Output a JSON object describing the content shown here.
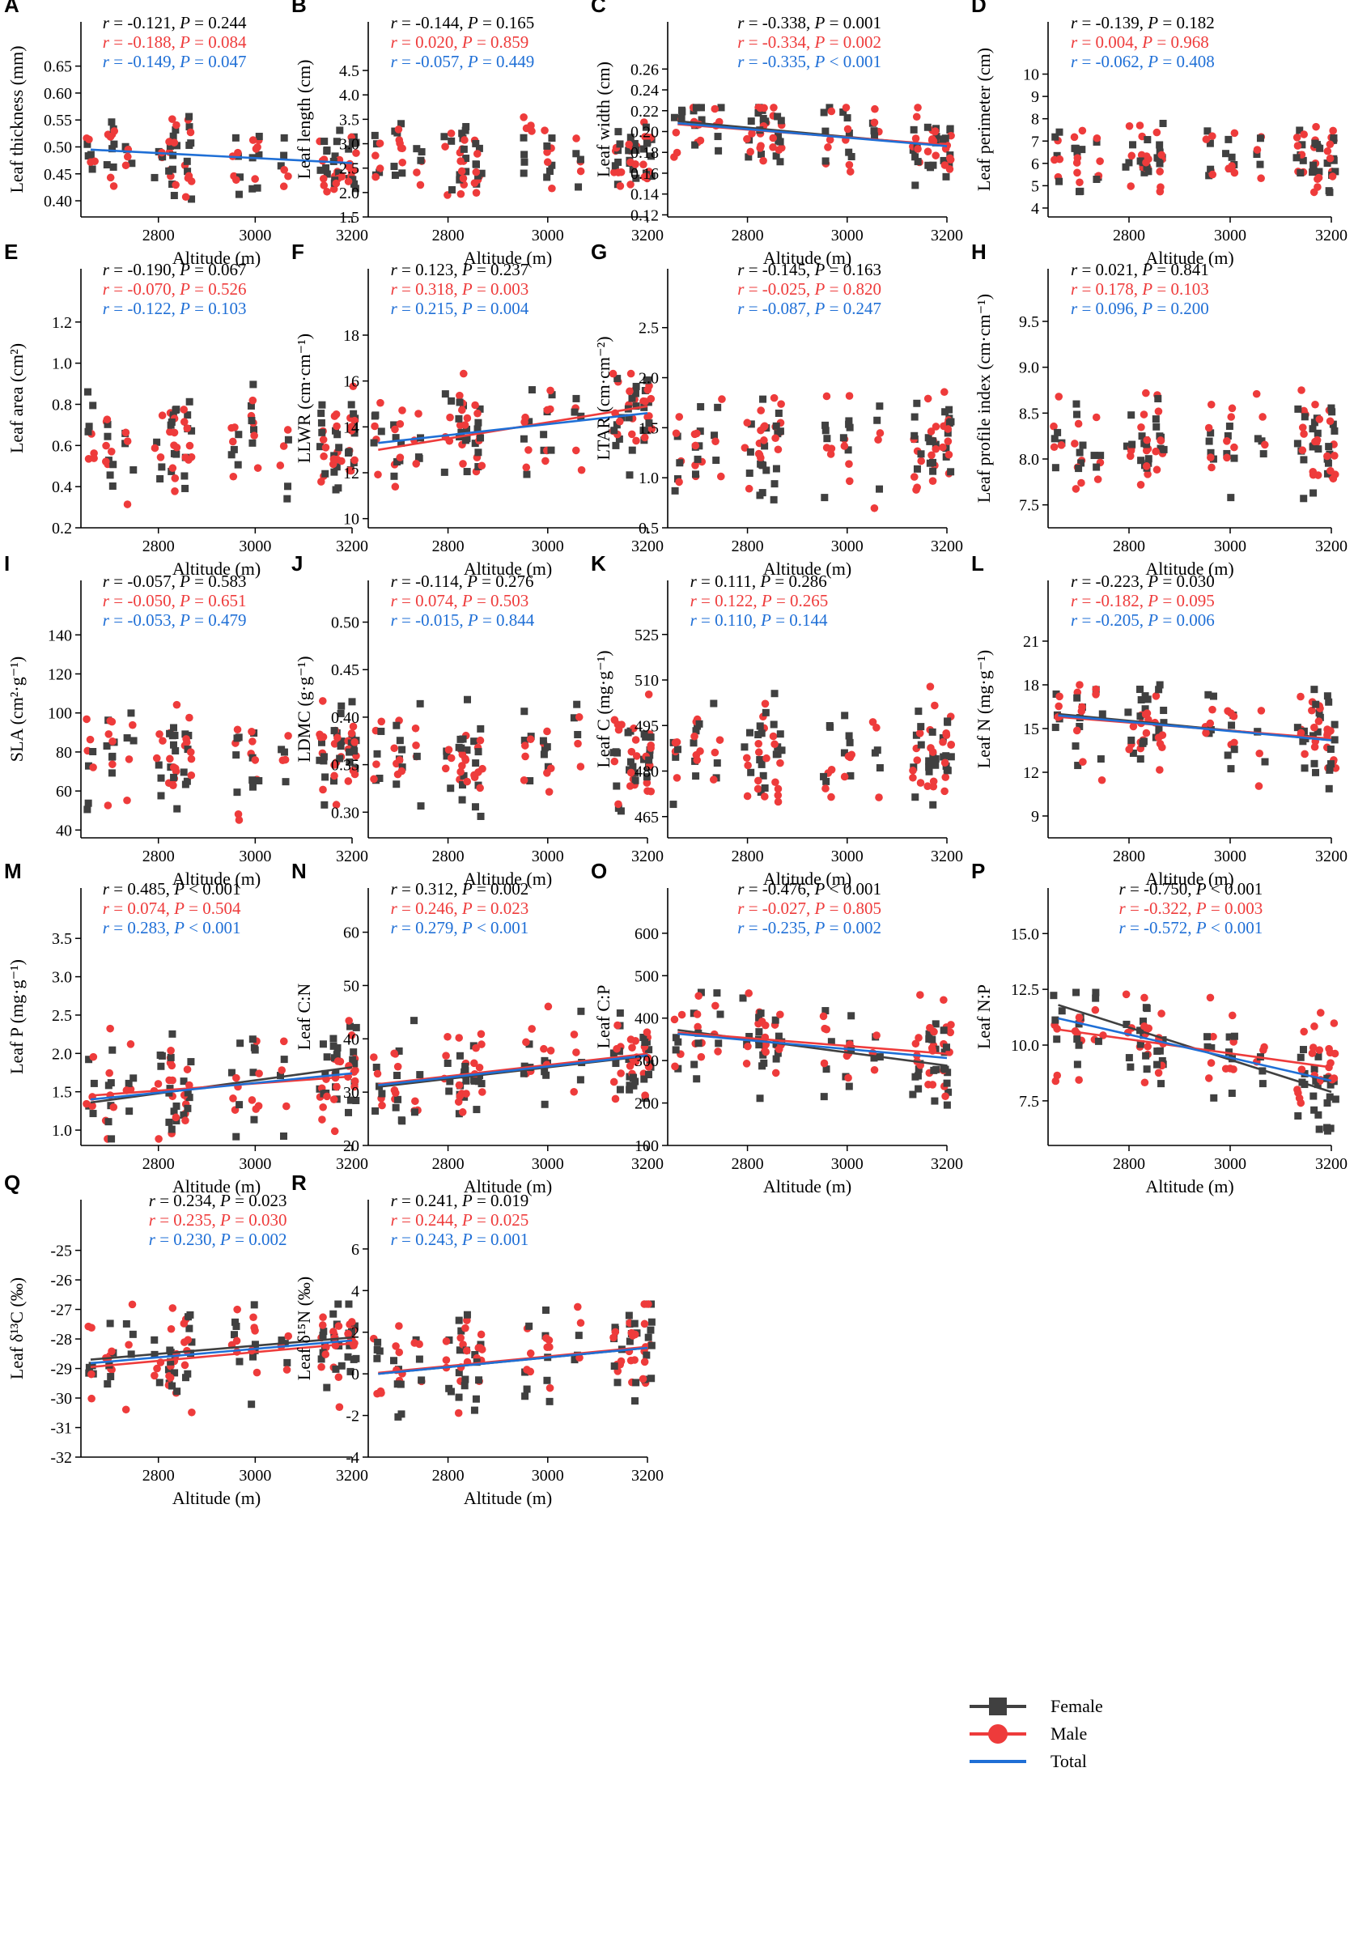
{
  "colors": {
    "female": "#404040",
    "male": "#ee3b3b",
    "total": "#1f6fd6"
  },
  "legend": [
    {
      "key": "female",
      "label": "Female"
    },
    {
      "key": "male",
      "label": "Male"
    },
    {
      "key": "total",
      "label": "Total"
    }
  ],
  "chart_data": [
    {
      "panel": "A",
      "type": "scatter",
      "xlabel": "Altitude (m)",
      "ylabel": "Leaf thickness (mm)",
      "xlim": [
        2640,
        3200
      ],
      "xticks": [
        "2800",
        "3000",
        "3200"
      ],
      "ylim": [
        0.37,
        0.66
      ],
      "yticks": [
        "0.40",
        "0.45",
        "0.50",
        "0.55",
        "0.60",
        "0.65"
      ],
      "stats": {
        "female": [
          "-0.121",
          "0.244",
          "="
        ],
        "male": [
          "-0.188",
          "0.084",
          "="
        ],
        "total": [
          "-0.149",
          "0.047",
          "="
        ]
      },
      "lines": {
        "total": [
          0.495,
          0.47
        ]
      },
      "stat_pos": "top-left"
    },
    {
      "panel": "B",
      "type": "scatter",
      "xlabel": "Altitude (m)",
      "ylabel": "Leaf length (cm)",
      "xlim": [
        2640,
        3200
      ],
      "xticks": [
        "2800",
        "3000",
        "3200"
      ],
      "ylim": [
        1.5,
        4.7
      ],
      "yticks": [
        "1.5",
        "2.0",
        "2.5",
        "3.0",
        "3.5",
        "4.0",
        "4.5"
      ],
      "stats": {
        "female": [
          "-0.144",
          "0.165",
          "="
        ],
        "male": [
          "0.020",
          "0.859",
          "="
        ],
        "total": [
          "-0.057",
          "0.449",
          "="
        ]
      },
      "lines": {},
      "stat_pos": "top-left"
    },
    {
      "panel": "C",
      "type": "scatter",
      "xlabel": "Altitude (m)",
      "ylabel": "Leaf width (cm)",
      "xlim": [
        2640,
        3200
      ],
      "xticks": [
        "2800",
        "3000",
        "3200"
      ],
      "ylim": [
        0.118,
        0.268
      ],
      "yticks": [
        "0.12",
        "0.14",
        "0.16",
        "0.18",
        "0.20",
        "0.22",
        "0.24",
        "0.26"
      ],
      "stats": {
        "female": [
          "-0.338",
          "0.001",
          "="
        ],
        "male": [
          "-0.334",
          "0.002",
          "="
        ],
        "total": [
          "-0.335",
          "0.001",
          "<"
        ]
      },
      "lines": {
        "female": [
          0.21,
          0.186
        ],
        "male": [
          0.207,
          0.187
        ],
        "total": [
          0.208,
          0.186
        ]
      },
      "stat_pos": "top-right"
    },
    {
      "panel": "D",
      "type": "scatter",
      "xlabel": "Altitude (m)",
      "ylabel": "Leaf perimeter (cm)",
      "xlim": [
        2640,
        3200
      ],
      "xticks": [
        "2800",
        "3000",
        "3200"
      ],
      "ylim": [
        3.6,
        10.6
      ],
      "yticks": [
        "4",
        "5",
        "6",
        "7",
        "8",
        "9",
        "10"
      ],
      "stats": {
        "female": [
          "-0.139",
          "0.182",
          "="
        ],
        "male": [
          "0.004",
          "0.968",
          "="
        ],
        "total": [
          "-0.062",
          "0.408",
          "="
        ]
      },
      "lines": {},
      "stat_pos": "top-left"
    },
    {
      "panel": "E",
      "type": "scatter",
      "xlabel": "Altitude (m)",
      "ylabel": "Leaf area (cm²)",
      "xlim": [
        2640,
        3200
      ],
      "xticks": [
        "2800",
        "3000",
        "3200"
      ],
      "ylim": [
        0.2,
        1.27
      ],
      "yticks": [
        "0.2",
        "0.4",
        "0.6",
        "0.8",
        "1.0",
        "1.2"
      ],
      "stats": {
        "female": [
          "-0.190",
          "0.067",
          "="
        ],
        "male": [
          "-0.070",
          "0.526",
          "="
        ],
        "total": [
          "-0.122",
          "0.103",
          "="
        ]
      },
      "lines": {},
      "stat_pos": "top-left"
    },
    {
      "panel": "F",
      "type": "scatter",
      "xlabel": "Altitude (m)",
      "ylabel": "LLWR (cm·cm⁻¹)",
      "xlim": [
        2640,
        3200
      ],
      "xticks": [
        "2800",
        "3000",
        "3200"
      ],
      "ylim": [
        9.6,
        19.2
      ],
      "yticks": [
        "10",
        "12",
        "14",
        "16",
        "18"
      ],
      "stats": {
        "female": [
          "0.123",
          "0.237",
          "="
        ],
        "male": [
          "0.318",
          "0.003",
          "="
        ],
        "total": [
          "0.215",
          "0.004",
          "="
        ]
      },
      "lines": {
        "male": [
          13.0,
          14.9
        ],
        "total": [
          13.3,
          14.6
        ]
      },
      "stat_pos": "top-left"
    },
    {
      "panel": "G",
      "type": "scatter",
      "xlabel": "Altitude (m)",
      "ylabel": "LTAR (cm·cm⁻²)",
      "xlim": [
        2640,
        3200
      ],
      "xticks": [
        "2800",
        "3000",
        "3200"
      ],
      "ylim": [
        0.5,
        2.7
      ],
      "yticks": [
        "0.5",
        "1.0",
        "1.5",
        "2.0",
        "2.5"
      ],
      "stats": {
        "female": [
          "-0.145",
          "0.163",
          "="
        ],
        "male": [
          "-0.025",
          "0.820",
          "="
        ],
        "total": [
          "-0.087",
          "0.247",
          "="
        ]
      },
      "lines": {},
      "stat_pos": "top-right"
    },
    {
      "panel": "H",
      "type": "scatter",
      "xlabel": "Altitude (m)",
      "ylabel": "Leaf profile index (cm·cm⁻¹)",
      "xlim": [
        2640,
        3200
      ],
      "xticks": [
        "2800",
        "3000",
        "3200"
      ],
      "ylim": [
        7.25,
        9.65
      ],
      "yticks": [
        "7.5",
        "8.0",
        "8.5",
        "9.0",
        "9.5"
      ],
      "stats": {
        "female": [
          "0.021",
          "0.841",
          "="
        ],
        "male": [
          "0.178",
          "0.103",
          "="
        ],
        "total": [
          "0.096",
          "0.200",
          "="
        ]
      },
      "lines": {},
      "stat_pos": "top-left"
    },
    {
      "panel": "I",
      "type": "scatter",
      "xlabel": "Altitude (m)",
      "ylabel": "SLA (cm²·g⁻¹)",
      "xlim": [
        2640,
        3200
      ],
      "xticks": [
        "2800",
        "3000",
        "3200"
      ],
      "ylim": [
        36,
        148
      ],
      "yticks": [
        "40",
        "60",
        "80",
        "100",
        "120",
        "140"
      ],
      "stats": {
        "female": [
          "-0.057",
          "0.583",
          "="
        ],
        "male": [
          "-0.050",
          "0.651",
          "="
        ],
        "total": [
          "-0.053",
          "0.479",
          "="
        ]
      },
      "lines": {},
      "stat_pos": "top-left"
    },
    {
      "panel": "J",
      "type": "scatter",
      "xlabel": "Altitude (m)",
      "ylabel": "LDMC (g·g⁻¹)",
      "xlim": [
        2640,
        3200
      ],
      "xticks": [
        "2800",
        "3000",
        "3200"
      ],
      "ylim": [
        0.273,
        0.503
      ],
      "yticks": [
        "0.30",
        "0.35",
        "0.40",
        "0.45",
        "0.50"
      ],
      "stats": {
        "female": [
          "-0.114",
          "0.276",
          "="
        ],
        "male": [
          "0.074",
          "0.503",
          "="
        ],
        "total": [
          "-0.015",
          "0.844",
          "="
        ]
      },
      "lines": {},
      "stat_pos": "top-left"
    },
    {
      "panel": "K",
      "type": "scatter",
      "xlabel": "Altitude (m)",
      "ylabel": "Leaf C (mg·g⁻¹)",
      "xlim": [
        2640,
        3200
      ],
      "xticks": [
        "2800",
        "3000",
        "3200"
      ],
      "ylim": [
        458,
        530
      ],
      "yticks": [
        "465",
        "480",
        "495",
        "510",
        "525"
      ],
      "stats": {
        "female": [
          "0.111",
          "0.286",
          "="
        ],
        "male": [
          "0.122",
          "0.265",
          "="
        ],
        "total": [
          "0.110",
          "0.144",
          "="
        ]
      },
      "lines": {},
      "stat_pos": "top-left"
    },
    {
      "panel": "L",
      "type": "scatter",
      "xlabel": "Altitude (m)",
      "ylabel": "Leaf N (mg·g⁻¹)",
      "xlim": [
        2640,
        3200
      ],
      "xticks": [
        "2800",
        "3000",
        "3200"
      ],
      "ylim": [
        7.5,
        22.5
      ],
      "yticks": [
        "9",
        "12",
        "15",
        "18",
        "21"
      ],
      "stats": {
        "female": [
          "-0.223",
          "0.030",
          "="
        ],
        "male": [
          "-0.182",
          "0.095",
          "="
        ],
        "total": [
          "-0.205",
          "0.006",
          "="
        ]
      },
      "lines": {
        "female": [
          16.0,
          14.2
        ],
        "male": [
          15.8,
          14.3
        ],
        "total": [
          15.9,
          14.2
        ]
      },
      "stat_pos": "top-left"
    },
    {
      "panel": "M",
      "type": "scatter",
      "xlabel": "Altitude (m)",
      "ylabel": "Leaf P (mg·g⁻¹)",
      "xlim": [
        2640,
        3200
      ],
      "xticks": [
        "2800",
        "3000",
        "3200"
      ],
      "ylim": [
        0.8,
        3.65
      ],
      "yticks": [
        "1.0",
        "1.5",
        "2.0",
        "2.5",
        "3.0",
        "3.5"
      ],
      "stats": {
        "female": [
          "0.485",
          "0.001",
          "<"
        ],
        "male": [
          "0.074",
          "0.504",
          "="
        ],
        "total": [
          "0.283",
          "0.001",
          "<"
        ]
      },
      "lines": {
        "female": [
          1.36,
          1.82
        ],
        "male": [
          1.45,
          1.7
        ],
        "total": [
          1.4,
          1.74
        ]
      },
      "stat_pos": "top-left"
    },
    {
      "panel": "N",
      "type": "scatter",
      "xlabel": "Altitude (m)",
      "ylabel": "Leaf C:N",
      "xlim": [
        2640,
        3200
      ],
      "xticks": [
        "2800",
        "3000",
        "3200"
      ],
      "ylim": [
        20,
        61
      ],
      "yticks": [
        "20",
        "30",
        "40",
        "50",
        "60"
      ],
      "stats": {
        "female": [
          "0.312",
          "0.002",
          "="
        ],
        "male": [
          "0.246",
          "0.023",
          "="
        ],
        "total": [
          "0.279",
          "0.001",
          "<"
        ]
      },
      "lines": {
        "female": [
          31.0,
          36.8
        ],
        "male": [
          31.5,
          37.2
        ],
        "total": [
          31.3,
          36.9
        ]
      },
      "stat_pos": "top-left"
    },
    {
      "panel": "O",
      "type": "scatter",
      "xlabel": "Altitude (m)",
      "ylabel": "Leaf C:P",
      "xlim": [
        2640,
        3200
      ],
      "xticks": [
        "2800",
        "3000",
        "3200"
      ],
      "ylim": [
        100,
        615
      ],
      "yticks": [
        "100",
        "200",
        "300",
        "400",
        "500",
        "600"
      ],
      "stats": {
        "female": [
          "-0.476",
          "0.001",
          "<"
        ],
        "male": [
          "-0.027",
          "0.805",
          "="
        ],
        "total": [
          "-0.235",
          "0.002",
          "="
        ]
      },
      "lines": {
        "female": [
          372,
          288
        ],
        "male": [
          366,
          316
        ],
        "total": [
          363,
          306
        ]
      },
      "stat_pos": "top-right"
    },
    {
      "panel": "P",
      "type": "scatter",
      "xlabel": "Altitude (m)",
      "ylabel": "Leaf N:P",
      "xlim": [
        2640,
        3200
      ],
      "xticks": [
        "2800",
        "3000",
        "3200"
      ],
      "ylim": [
        5.5,
        15.3
      ],
      "yticks": [
        "7.5",
        "10.0",
        "12.5",
        "15.0"
      ],
      "stats": {
        "female": [
          "-0.750",
          "0.001",
          "<"
        ],
        "male": [
          "-0.322",
          "0.003",
          "="
        ],
        "total": [
          "-0.572",
          "0.001",
          "<"
        ]
      },
      "lines": {
        "female": [
          11.8,
          7.9
        ],
        "male": [
          10.7,
          9.0
        ],
        "total": [
          11.2,
          8.4
        ]
      },
      "stat_pos": "top-right"
    },
    {
      "panel": "Q",
      "type": "scatter",
      "xlabel": "Altitude (m)",
      "ylabel": "Leaf δ¹³C (‰)",
      "xlim": [
        2640,
        3200
      ],
      "xticks": [
        "2800",
        "3000",
        "3200"
      ],
      "ylim": [
        -32,
        -24.6
      ],
      "yticks": [
        "-32",
        "-31",
        "-30",
        "-29",
        "-28",
        "-27",
        "-26",
        "-25"
      ],
      "stats": {
        "female": [
          "0.234",
          "0.023",
          "="
        ],
        "male": [
          "0.235",
          "0.030",
          "="
        ],
        "total": [
          "0.230",
          "0.002",
          "="
        ]
      },
      "lines": {
        "female": [
          -28.7,
          -27.95
        ],
        "male": [
          -28.95,
          -28.15
        ],
        "total": [
          -28.82,
          -28.05
        ]
      },
      "stat_pos": "top-right"
    },
    {
      "panel": "R",
      "type": "scatter",
      "xlabel": "Altitude (m)",
      "ylabel": "Leaf δ¹⁵N (‰)",
      "xlim": [
        2640,
        3200
      ],
      "xticks": [
        "2800",
        "3000",
        "3200"
      ],
      "ylim": [
        -4,
        6.5
      ],
      "yticks": [
        "-4",
        "-2",
        "0",
        "2",
        "4",
        "6"
      ],
      "stats": {
        "female": [
          "0.241",
          "0.019",
          "="
        ],
        "male": [
          "0.244",
          "0.025",
          "="
        ],
        "total": [
          "0.243",
          "0.001",
          "="
        ]
      },
      "lines": {
        "female": [
          0.0,
          1.25
        ],
        "male": [
          0.05,
          1.3
        ],
        "total": [
          0.0,
          1.25
        ]
      },
      "stat_pos": "top-left"
    }
  ]
}
